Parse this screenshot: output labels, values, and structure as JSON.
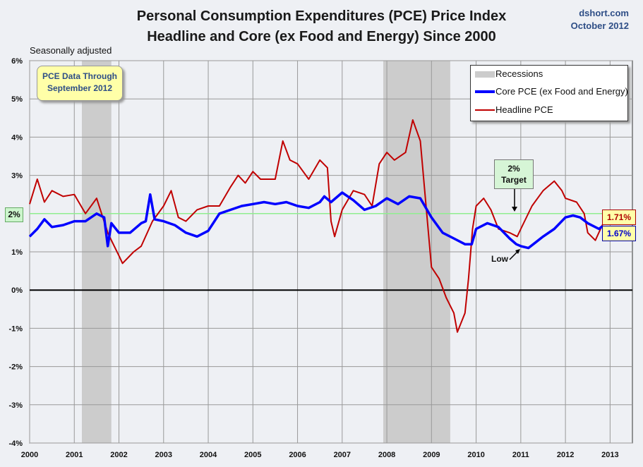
{
  "header": {
    "title_line1": "Personal Consumption Expenditures (PCE) Price Index",
    "title_line2": "Headline and Core (ex Food and Energy) Since 2000",
    "source": "dshort.com",
    "date": "October 2012",
    "note": "Seasonally adjusted"
  },
  "annotations": {
    "data_through": [
      "PCE Data Through",
      "September 2012"
    ],
    "target": [
      "2%",
      "Target"
    ],
    "low": "Low",
    "left_marker": "2%",
    "headline_latest": "1.71%",
    "core_latest": "1.67%"
  },
  "legend": {
    "recessions": "Recessions",
    "core": "Core PCE (ex Food and Energy)",
    "headline": "Headline PCE"
  },
  "colors": {
    "core": "#0000ff",
    "headline": "#c00000",
    "recession": "#cccccc",
    "target_line": "#90ee90",
    "zero_line": "#000000"
  },
  "chart_data": {
    "type": "line",
    "title": "Personal Consumption Expenditures (PCE) Price Index",
    "subtitle": "Headline and Core (ex Food and Energy) Since 2000",
    "y_unit": "%",
    "ylim": [
      -4,
      6
    ],
    "yticks": [
      -4,
      -3,
      -2,
      -1,
      0,
      1,
      2,
      3,
      4,
      5,
      6
    ],
    "ytick_labels": [
      "-4%",
      "-3%",
      "-2%",
      "-1%",
      "0%",
      "1%",
      "2%",
      "3%",
      "4%",
      "5%",
      "6%"
    ],
    "xlim": [
      2000,
      2013.5
    ],
    "xticks": [
      2000,
      2001,
      2002,
      2003,
      2004,
      2005,
      2006,
      2007,
      2008,
      2009,
      2010,
      2011,
      2012,
      2013
    ],
    "xtick_labels": [
      "2000",
      "2001",
      "2002",
      "2003",
      "2004",
      "2005",
      "2006",
      "2007",
      "2008",
      "2009",
      "2010",
      "2011",
      "2012",
      "2013"
    ],
    "grid": true,
    "legend_position": "top-right",
    "reference_lines": [
      {
        "y": 2,
        "label": "2% Target"
      },
      {
        "y": 0
      }
    ],
    "recessions": [
      [
        2001.17,
        2001.83
      ],
      [
        2007.92,
        2009.42
      ]
    ],
    "series": [
      {
        "name": "Core PCE (ex Food and Energy)",
        "points": [
          [
            2000.0,
            1.4
          ],
          [
            2000.17,
            1.6
          ],
          [
            2000.33,
            1.85
          ],
          [
            2000.5,
            1.65
          ],
          [
            2000.75,
            1.7
          ],
          [
            2001.0,
            1.8
          ],
          [
            2001.25,
            1.8
          ],
          [
            2001.5,
            2.0
          ],
          [
            2001.67,
            1.9
          ],
          [
            2001.75,
            1.15
          ],
          [
            2001.83,
            1.75
          ],
          [
            2002.0,
            1.5
          ],
          [
            2002.25,
            1.5
          ],
          [
            2002.5,
            1.75
          ],
          [
            2002.6,
            1.8
          ],
          [
            2002.7,
            2.5
          ],
          [
            2002.8,
            1.85
          ],
          [
            2003.0,
            1.8
          ],
          [
            2003.25,
            1.7
          ],
          [
            2003.5,
            1.5
          ],
          [
            2003.75,
            1.4
          ],
          [
            2004.0,
            1.55
          ],
          [
            2004.25,
            2.0
          ],
          [
            2004.5,
            2.1
          ],
          [
            2004.75,
            2.2
          ],
          [
            2005.0,
            2.25
          ],
          [
            2005.25,
            2.3
          ],
          [
            2005.5,
            2.25
          ],
          [
            2005.75,
            2.3
          ],
          [
            2006.0,
            2.2
          ],
          [
            2006.25,
            2.15
          ],
          [
            2006.5,
            2.3
          ],
          [
            2006.6,
            2.45
          ],
          [
            2006.75,
            2.3
          ],
          [
            2007.0,
            2.55
          ],
          [
            2007.25,
            2.35
          ],
          [
            2007.5,
            2.1
          ],
          [
            2007.75,
            2.2
          ],
          [
            2008.0,
            2.4
          ],
          [
            2008.25,
            2.25
          ],
          [
            2008.5,
            2.45
          ],
          [
            2008.75,
            2.4
          ],
          [
            2009.0,
            1.9
          ],
          [
            2009.25,
            1.5
          ],
          [
            2009.5,
            1.35
          ],
          [
            2009.75,
            1.2
          ],
          [
            2009.9,
            1.2
          ],
          [
            2010.0,
            1.6
          ],
          [
            2010.25,
            1.75
          ],
          [
            2010.5,
            1.65
          ],
          [
            2010.75,
            1.35
          ],
          [
            2010.9,
            1.2
          ],
          [
            2011.0,
            1.15
          ],
          [
            2011.17,
            1.1
          ],
          [
            2011.5,
            1.4
          ],
          [
            2011.75,
            1.6
          ],
          [
            2012.0,
            1.9
          ],
          [
            2012.17,
            1.95
          ],
          [
            2012.33,
            1.9
          ],
          [
            2012.5,
            1.75
          ],
          [
            2012.75,
            1.6
          ],
          [
            2012.83,
            1.67
          ]
        ]
      },
      {
        "name": "Headline PCE",
        "points": [
          [
            2000.0,
            2.25
          ],
          [
            2000.17,
            2.9
          ],
          [
            2000.33,
            2.3
          ],
          [
            2000.5,
            2.6
          ],
          [
            2000.75,
            2.45
          ],
          [
            2001.0,
            2.5
          ],
          [
            2001.25,
            2.0
          ],
          [
            2001.5,
            2.4
          ],
          [
            2001.75,
            1.5
          ],
          [
            2001.83,
            1.3
          ],
          [
            2002.0,
            0.9
          ],
          [
            2002.08,
            0.7
          ],
          [
            2002.33,
            1.0
          ],
          [
            2002.5,
            1.15
          ],
          [
            2002.75,
            1.8
          ],
          [
            2003.0,
            2.2
          ],
          [
            2003.17,
            2.6
          ],
          [
            2003.33,
            1.9
          ],
          [
            2003.5,
            1.8
          ],
          [
            2003.75,
            2.1
          ],
          [
            2004.0,
            2.2
          ],
          [
            2004.25,
            2.2
          ],
          [
            2004.5,
            2.7
          ],
          [
            2004.67,
            3.0
          ],
          [
            2004.83,
            2.8
          ],
          [
            2005.0,
            3.1
          ],
          [
            2005.17,
            2.9
          ],
          [
            2005.5,
            2.9
          ],
          [
            2005.67,
            3.9
          ],
          [
            2005.83,
            3.4
          ],
          [
            2006.0,
            3.3
          ],
          [
            2006.25,
            2.9
          ],
          [
            2006.5,
            3.4
          ],
          [
            2006.67,
            3.2
          ],
          [
            2006.75,
            1.8
          ],
          [
            2006.83,
            1.4
          ],
          [
            2007.0,
            2.1
          ],
          [
            2007.25,
            2.6
          ],
          [
            2007.5,
            2.5
          ],
          [
            2007.67,
            2.2
          ],
          [
            2007.83,
            3.3
          ],
          [
            2008.0,
            3.6
          ],
          [
            2008.17,
            3.4
          ],
          [
            2008.42,
            3.6
          ],
          [
            2008.58,
            4.45
          ],
          [
            2008.75,
            3.9
          ],
          [
            2009.0,
            0.6
          ],
          [
            2009.17,
            0.3
          ],
          [
            2009.33,
            -0.2
          ],
          [
            2009.5,
            -0.6
          ],
          [
            2009.58,
            -1.1
          ],
          [
            2009.75,
            -0.6
          ],
          [
            2009.83,
            0.3
          ],
          [
            2009.92,
            1.6
          ],
          [
            2010.0,
            2.2
          ],
          [
            2010.17,
            2.4
          ],
          [
            2010.33,
            2.1
          ],
          [
            2010.5,
            1.6
          ],
          [
            2010.75,
            1.5
          ],
          [
            2010.92,
            1.4
          ],
          [
            2011.0,
            1.6
          ],
          [
            2011.25,
            2.2
          ],
          [
            2011.5,
            2.6
          ],
          [
            2011.75,
            2.85
          ],
          [
            2011.92,
            2.6
          ],
          [
            2012.0,
            2.4
          ],
          [
            2012.25,
            2.3
          ],
          [
            2012.42,
            2.0
          ],
          [
            2012.5,
            1.5
          ],
          [
            2012.67,
            1.3
          ],
          [
            2012.83,
            1.71
          ]
        ]
      }
    ]
  }
}
